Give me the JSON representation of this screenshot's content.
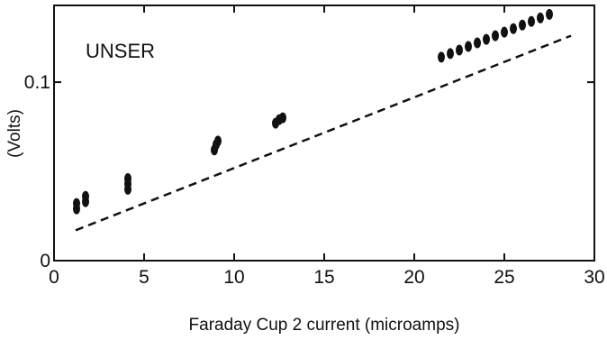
{
  "chart_data": {
    "type": "scatter",
    "title": "",
    "xlabel": "Faraday Cup 2 current (microamps)",
    "ylabel": "(Volts)",
    "annotation": "UNSER",
    "xlim": [
      0,
      30
    ],
    "ylim": [
      0,
      0.143
    ],
    "x_ticks": [
      0,
      5,
      10,
      15,
      20,
      25,
      30
    ],
    "x_tick_labels": [
      "0",
      "5",
      "10",
      "15",
      "20",
      "25",
      "30"
    ],
    "y_ticks": [
      0,
      0.1
    ],
    "y_tick_labels": [
      "0",
      "0.1"
    ],
    "grid": false,
    "series": [
      {
        "style": "points",
        "color": "#111111",
        "points": [
          [
            1.25,
            0.029
          ],
          [
            1.25,
            0.032
          ],
          [
            1.75,
            0.033
          ],
          [
            1.75,
            0.036
          ],
          [
            4.1,
            0.04
          ],
          [
            4.1,
            0.043
          ],
          [
            4.1,
            0.046
          ],
          [
            8.9,
            0.062
          ],
          [
            9.0,
            0.065
          ],
          [
            9.1,
            0.067
          ],
          [
            12.3,
            0.077
          ],
          [
            12.5,
            0.079
          ],
          [
            12.7,
            0.08
          ],
          [
            21.5,
            0.114
          ],
          [
            22.0,
            0.116
          ],
          [
            22.5,
            0.118
          ],
          [
            23.0,
            0.12
          ],
          [
            23.5,
            0.122
          ],
          [
            24.0,
            0.124
          ],
          [
            24.5,
            0.126
          ],
          [
            25.0,
            0.128
          ],
          [
            25.5,
            0.13
          ],
          [
            26.0,
            0.132
          ],
          [
            26.5,
            0.134
          ],
          [
            27.0,
            0.136
          ],
          [
            27.5,
            0.138
          ]
        ]
      },
      {
        "style": "dashed-line",
        "color": "#111111",
        "x": [
          1.2,
          28.7
        ],
        "y": [
          0.017,
          0.126
        ]
      }
    ]
  }
}
